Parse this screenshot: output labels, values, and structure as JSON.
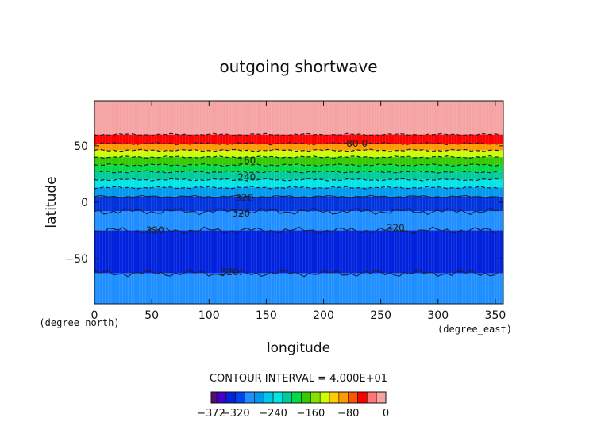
{
  "chart_data": {
    "type": "heatmap",
    "title": "outgoing shortwave",
    "xlabel": "longitude",
    "ylabel": "latitude",
    "x_units": "(degree_east)",
    "y_units": "(degree_north)",
    "xlim": [
      0,
      357
    ],
    "ylim": [
      -90,
      90
    ],
    "x_ticks": [
      "0",
      "50",
      "100",
      "150",
      "200",
      "250",
      "300",
      "350"
    ],
    "y_ticks": [
      "50",
      "0",
      "−50"
    ],
    "contour_interval_text": "CONTOUR INTERVAL = 4.000E+01",
    "colorbar_levels": [
      -372,
      -360,
      -340,
      -320,
      -300,
      -280,
      -260,
      -240,
      -220,
      -200,
      -180,
      -160,
      -140,
      -120,
      -100,
      -80,
      -60,
      -40,
      -20,
      0
    ],
    "colorbar_tick_labels": [
      "−372",
      "−320",
      "−240",
      "−160",
      "−80",
      "0"
    ],
    "latitude_bands": [
      {
        "lat_from": 90,
        "lat_to": 60,
        "level": "-20 to 0",
        "color": "#f5a3a3"
      },
      {
        "lat_from": 60,
        "lat_to": 52,
        "level": "-60 to -20",
        "color": "#ff0000"
      },
      {
        "lat_from": 52,
        "lat_to": 46,
        "level": "-80 to -60",
        "color": "#ff9900"
      },
      {
        "lat_from": 46,
        "lat_to": 40,
        "level": "-120 to -80",
        "color": "#ccff00"
      },
      {
        "lat_from": 40,
        "lat_to": 33,
        "level": "-160 to -120",
        "color": "#33cc00"
      },
      {
        "lat_from": 33,
        "lat_to": 27,
        "level": "-200 to -160",
        "color": "#00dd44"
      },
      {
        "lat_from": 27,
        "lat_to": 20,
        "level": "-240 to -200",
        "color": "#00cc99"
      },
      {
        "lat_from": 20,
        "lat_to": 13,
        "level": "-280 to -240",
        "color": "#00e6e6"
      },
      {
        "lat_from": 13,
        "lat_to": 5,
        "level": "-320 to -280",
        "color": "#0099ee"
      },
      {
        "lat_from": 5,
        "lat_to": -8,
        "level": "-340 to -320",
        "color": "#0033dd"
      },
      {
        "lat_from": -8,
        "lat_to": -25,
        "level": "-320 to -280",
        "color": "#1f8fff"
      },
      {
        "lat_from": -25,
        "lat_to": -63,
        "level": "-340 to -320",
        "color": "#0022dd"
      },
      {
        "lat_from": -63,
        "lat_to": -90,
        "level": "-320 to -280",
        "color": "#1f8fff"
      }
    ],
    "contour_labels": [
      {
        "text": "80.0",
        "lon": 220,
        "lat": 52
      },
      {
        "text": "160.",
        "lon": 125,
        "lat": 37
      },
      {
        "text": "240.",
        "lon": 125,
        "lat": 22
      },
      {
        "text": "320",
        "lon": 123,
        "lat": 4
      },
      {
        "text": "320",
        "lon": 120,
        "lat": -10
      },
      {
        "text": "320",
        "lon": 45,
        "lat": -25
      },
      {
        "text": "320",
        "lon": 255,
        "lat": -23
      },
      {
        "text": "320.",
        "lon": 110,
        "lat": -62
      }
    ],
    "grid": false,
    "legend": "colorbar bottom"
  }
}
